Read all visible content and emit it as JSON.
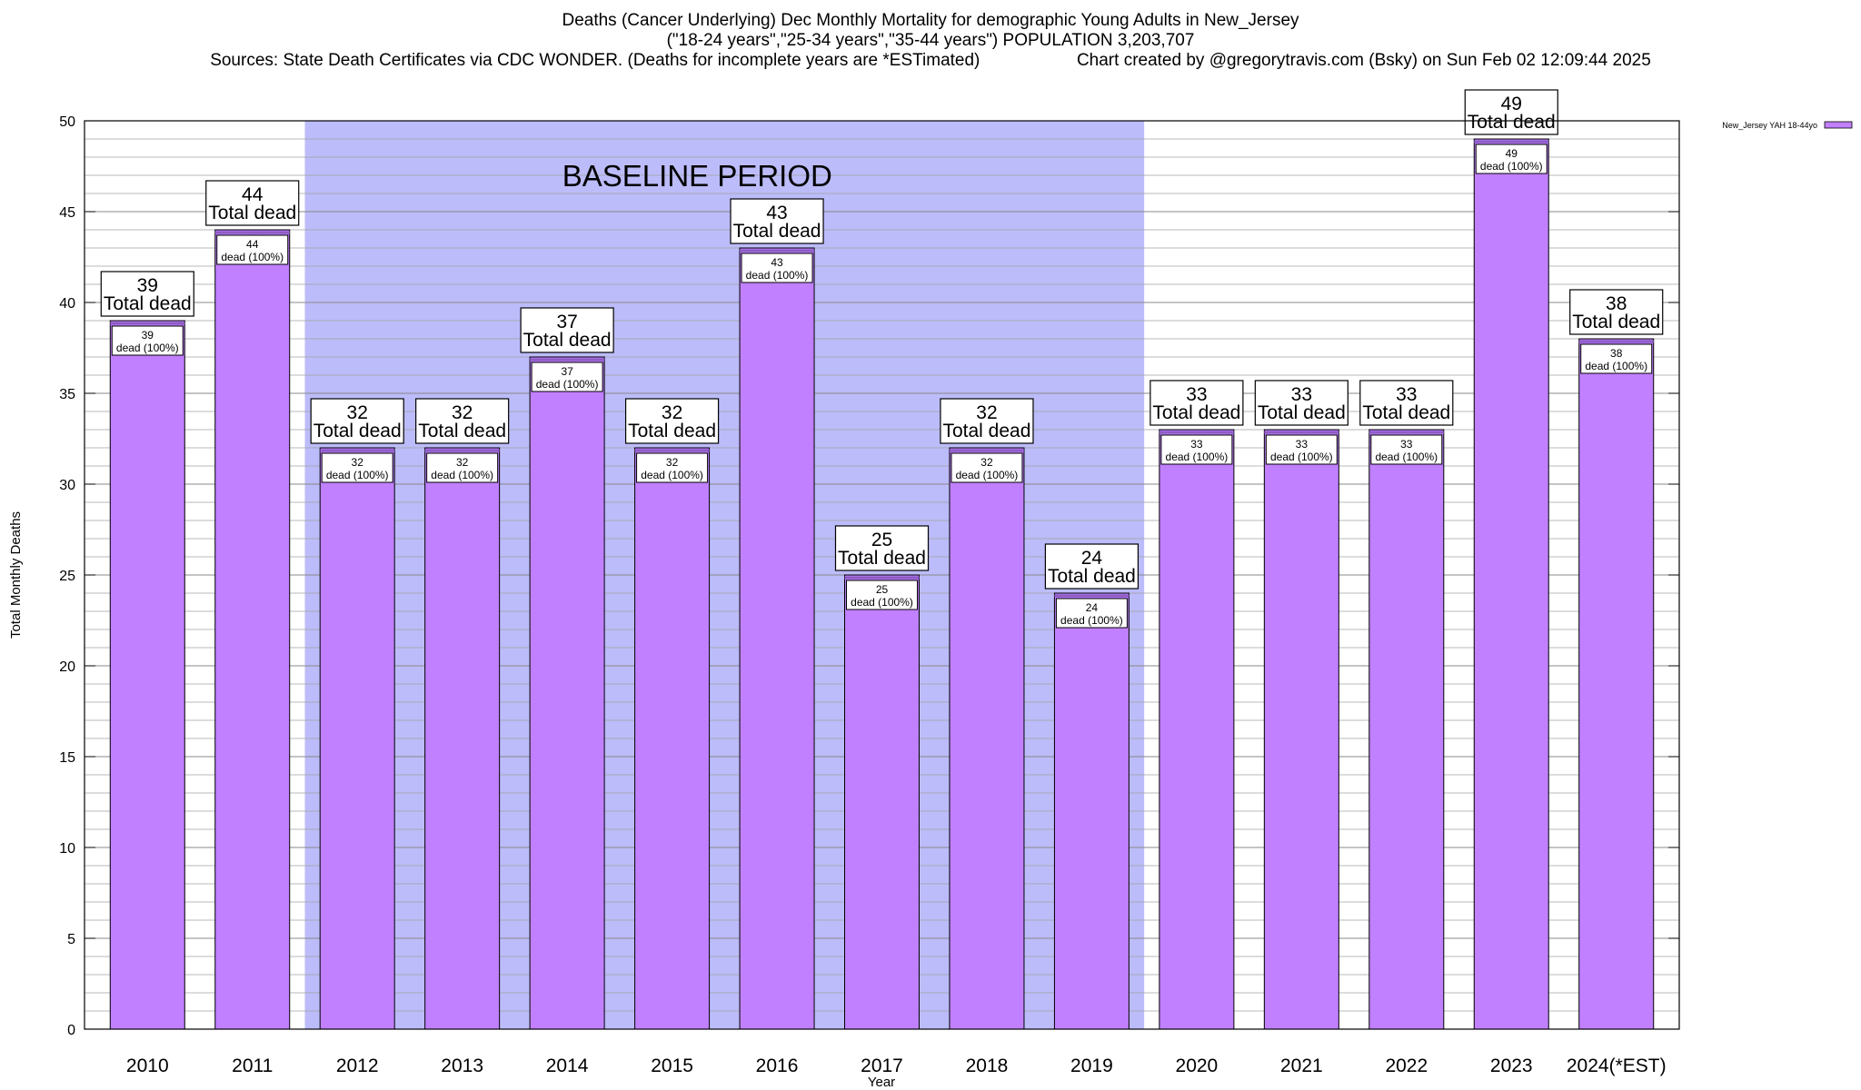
{
  "title_lines": [
    "Deaths (Cancer Underlying) Dec Monthly Mortality for demographic Young Adults in New_Jersey",
    "(\"18-24 years\",\"25-34 years\",\"35-44 years\") POPULATION 3,203,707"
  ],
  "sources_text": "Sources: State Death Certificates via CDC WONDER. (Deaths for incomplete years are *ESTimated)",
  "credit_text": "Chart created by @gregorytravis.com (Bsky) on Sun Feb 02 12:09:44 2025",
  "chart_data": {
    "type": "bar",
    "categories": [
      "2010",
      "2011",
      "2012",
      "2013",
      "2014",
      "2015",
      "2016",
      "2017",
      "2018",
      "2019",
      "2020",
      "2021",
      "2022",
      "2023",
      "2024(*EST)"
    ],
    "series": [
      {
        "name": "New_Jersey YAH 18-44yo",
        "values": [
          39,
          44,
          32,
          32,
          37,
          32,
          43,
          25,
          32,
          24,
          33,
          33,
          33,
          49,
          38
        ]
      }
    ],
    "xlabel": "Year",
    "ylabel": "Total Monthly Deaths",
    "ylim": [
      0,
      50
    ],
    "yticks": [
      0,
      5,
      10,
      15,
      20,
      25,
      30,
      35,
      40,
      45,
      50
    ],
    "top_label_suffix": "Total dead",
    "inner_label_suffix": "dead (100%)",
    "baseline": {
      "label": "BASELINE PERIOD",
      "start": "2012",
      "end": "2019"
    },
    "legend_placement": "top-right",
    "grid": true,
    "colors": {
      "bar": "#c080ff",
      "bar_top": "#8c5cc4",
      "baseline_band": "#bcbcfa",
      "grid": "#a0a0a0"
    }
  }
}
